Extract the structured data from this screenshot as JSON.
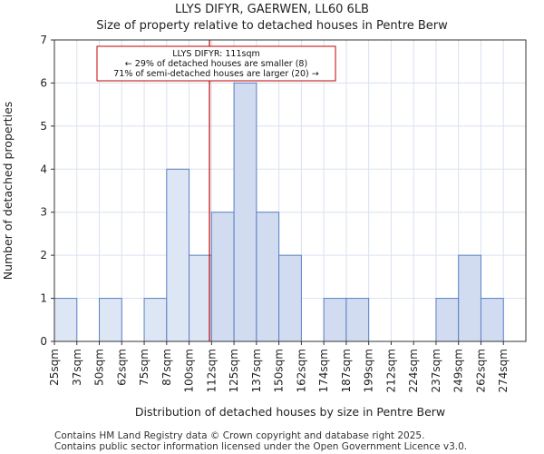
{
  "header": {
    "title": "LLYS DIFYR, GAERWEN, LL60 6LB",
    "subtitle": "Size of property relative to detached houses in Pentre Berw"
  },
  "footer": {
    "line1": "Contains HM Land Registry data © Crown copyright and database right 2025.",
    "line2": "Contains public sector information licensed under the Open Government Licence v3.0."
  },
  "chart_data": {
    "type": "bar",
    "title": "LLYS DIFYR, GAERWEN, LL60 6LB",
    "subtitle": "Size of property relative to detached houses in Pentre Berw",
    "xlabel": "Distribution of detached houses by size in Pentre Berw",
    "ylabel": "Number of detached properties",
    "categories": [
      "25sqm",
      "37sqm",
      "50sqm",
      "62sqm",
      "75sqm",
      "87sqm",
      "100sqm",
      "112sqm",
      "125sqm",
      "137sqm",
      "150sqm",
      "162sqm",
      "174sqm",
      "187sqm",
      "199sqm",
      "212sqm",
      "224sqm",
      "237sqm",
      "249sqm",
      "262sqm",
      "274sqm"
    ],
    "values": [
      1,
      0,
      1,
      0,
      1,
      4,
      2,
      3,
      6,
      3,
      2,
      0,
      1,
      1,
      0,
      0,
      0,
      1,
      2,
      1,
      0
    ],
    "ylim": [
      0,
      7
    ],
    "yticks": [
      0,
      1,
      2,
      3,
      4,
      5,
      6,
      7
    ],
    "grid": true,
    "marker": {
      "value_sqm": 111,
      "lines": [
        "LLYS DIFYR: 111sqm",
        "← 29% of detached houses are smaller (8)",
        "71% of semi-detached houses are larger (20) →"
      ]
    },
    "colors": {
      "bar_before": "#dde6f4",
      "bar_after": "#d1dcf1",
      "bar_edge": "#5b7fc4",
      "marker": "#c00000",
      "grid": "#d9e1ef"
    }
  }
}
